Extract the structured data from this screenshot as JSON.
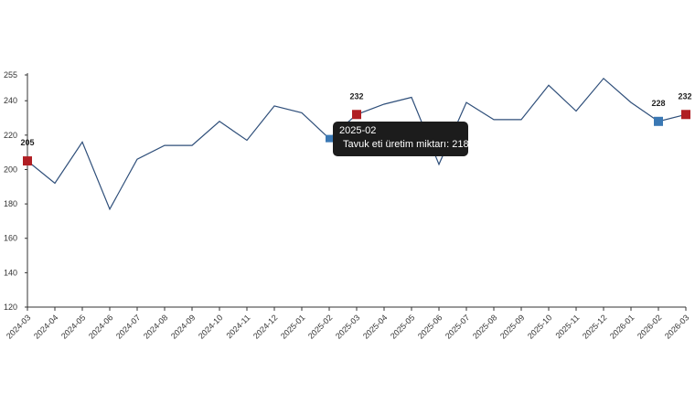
{
  "colors": {
    "line": "#2f4f7a",
    "highlight_marker": "#b01e23",
    "hover_marker": "#3a78b4",
    "axis": "#333333",
    "tooltip_bg": "#1c1c1c"
  },
  "chart_data": {
    "type": "line",
    "title": "",
    "xlabel": "",
    "ylabel": "",
    "ylim": [
      120,
      255
    ],
    "yticks": [
      120,
      140,
      160,
      180,
      200,
      220,
      240,
      255
    ],
    "grid": false,
    "categories": [
      "2024-03",
      "2024-04",
      "2024-05",
      "2024-06",
      "2024-07",
      "2024-08",
      "2024-09",
      "2024-10",
      "2024-11",
      "2024-12",
      "2025-01",
      "2025-02",
      "2025-03",
      "2025-04",
      "2025-05",
      "2025-06",
      "2025-07",
      "2025-08",
      "2025-09",
      "2025-10",
      "2025-11",
      "2025-12",
      "2026-01",
      "2026-02",
      "2026-03"
    ],
    "series": [
      {
        "name": "Tavuk eti üretim miktarı",
        "values": [
          205,
          192,
          216,
          177,
          206,
          214,
          214,
          228,
          217,
          237,
          233,
          218,
          232,
          238,
          242,
          203,
          239,
          229,
          229,
          249,
          234,
          253,
          239,
          228,
          232
        ]
      }
    ],
    "labeled_points": [
      {
        "category": "2024-03",
        "value": 205,
        "label": "205"
      },
      {
        "category": "2025-03",
        "value": 232,
        "label": "232"
      },
      {
        "category": "2026-02",
        "value": 228,
        "label": "228"
      },
      {
        "category": "2026-03",
        "value": 232,
        "label": "232"
      }
    ],
    "hovered_point": {
      "category": "2025-02",
      "value": 218
    }
  },
  "tooltip": {
    "title": "2025-02",
    "series_label": "Tavuk eti üretim miktarı",
    "value_text": "218"
  }
}
